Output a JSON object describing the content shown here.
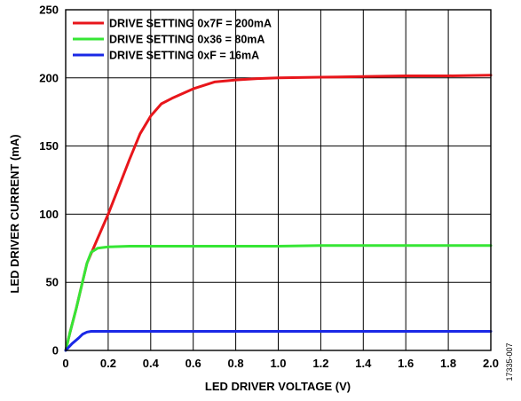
{
  "figure_id": "17335-007",
  "chart_data": {
    "type": "line",
    "title": "",
    "xlabel": "LED DRIVER VOLTAGE (V)",
    "ylabel": "LED DRIVER CURRENT (mA)",
    "xlim": [
      0,
      2.0
    ],
    "ylim": [
      0,
      250
    ],
    "xticks": [
      0,
      0.2,
      0.4,
      0.6,
      0.8,
      1.0,
      1.2,
      1.4,
      1.6,
      1.8,
      2.0
    ],
    "xtick_labels": [
      "0",
      "0.2",
      "0.4",
      "0.6",
      "0.8",
      "1.0",
      "1.2",
      "1.4",
      "1.6",
      "1.8",
      "2.0"
    ],
    "yticks": [
      0,
      50,
      100,
      150,
      200,
      250
    ],
    "ytick_labels": [
      "0",
      "50",
      "100",
      "150",
      "200",
      "250"
    ],
    "grid": true,
    "legend_position": "top-left",
    "series": [
      {
        "name": "DRIVE SETTING 0x7F = 200mA",
        "color": "#e8161b",
        "x": [
          0,
          0.02,
          0.05,
          0.08,
          0.1,
          0.15,
          0.2,
          0.25,
          0.3,
          0.35,
          0.4,
          0.45,
          0.5,
          0.6,
          0.7,
          0.8,
          0.9,
          1.0,
          1.2,
          1.4,
          1.6,
          1.8,
          2.0
        ],
        "y": [
          0,
          13,
          31,
          51,
          64,
          82,
          100,
          120,
          140,
          159,
          172,
          181,
          185,
          192,
          197,
          198.5,
          199.5,
          200,
          200.5,
          201,
          201.5,
          201.5,
          202
        ]
      },
      {
        "name": "DRIVE SETTING 0x36 = 80mA",
        "color": "#36e635",
        "x": [
          0,
          0.02,
          0.05,
          0.08,
          0.1,
          0.12,
          0.15,
          0.2,
          0.3,
          0.4,
          0.6,
          0.8,
          1.0,
          1.2,
          1.4,
          1.6,
          1.8,
          2.0
        ],
        "y": [
          0,
          13,
          31,
          51,
          64,
          72,
          75,
          76,
          76.5,
          76.5,
          76.5,
          76.5,
          76.5,
          77,
          77,
          77,
          77,
          77
        ]
      },
      {
        "name": "DRIVE SETTING 0xF = 16mA",
        "color": "#1a28e6",
        "x": [
          0,
          0.03,
          0.06,
          0.08,
          0.1,
          0.12,
          0.2,
          0.4,
          0.6,
          0.8,
          1.0,
          1.2,
          1.4,
          1.6,
          1.8,
          2.0
        ],
        "y": [
          0,
          5,
          9,
          12,
          13.5,
          14,
          14,
          14,
          14,
          14,
          14,
          14,
          14,
          14,
          14,
          14
        ]
      }
    ]
  }
}
